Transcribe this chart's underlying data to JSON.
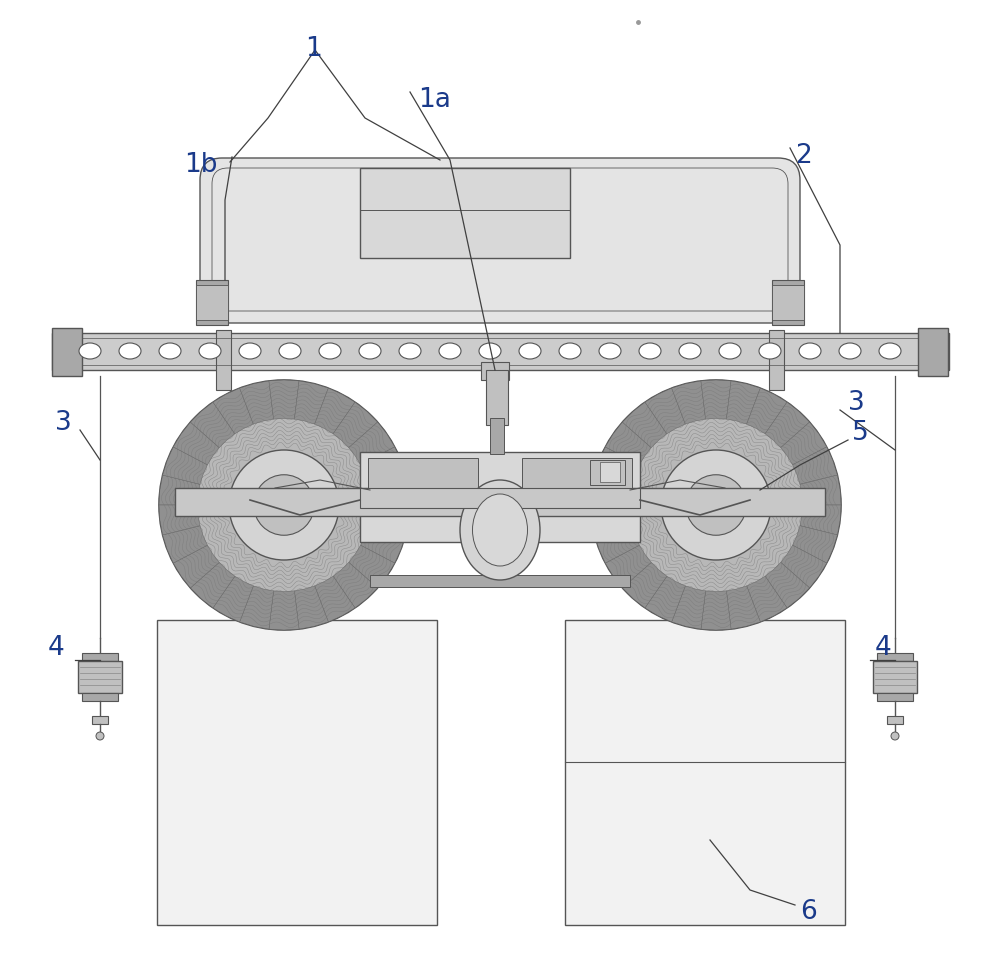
{
  "bg_color": "#ffffff",
  "line_color": "#555555",
  "label_color": "#1a3a8a",
  "figsize": [
    10.0,
    9.76
  ],
  "dpi": 100,
  "line_width": 1.0
}
